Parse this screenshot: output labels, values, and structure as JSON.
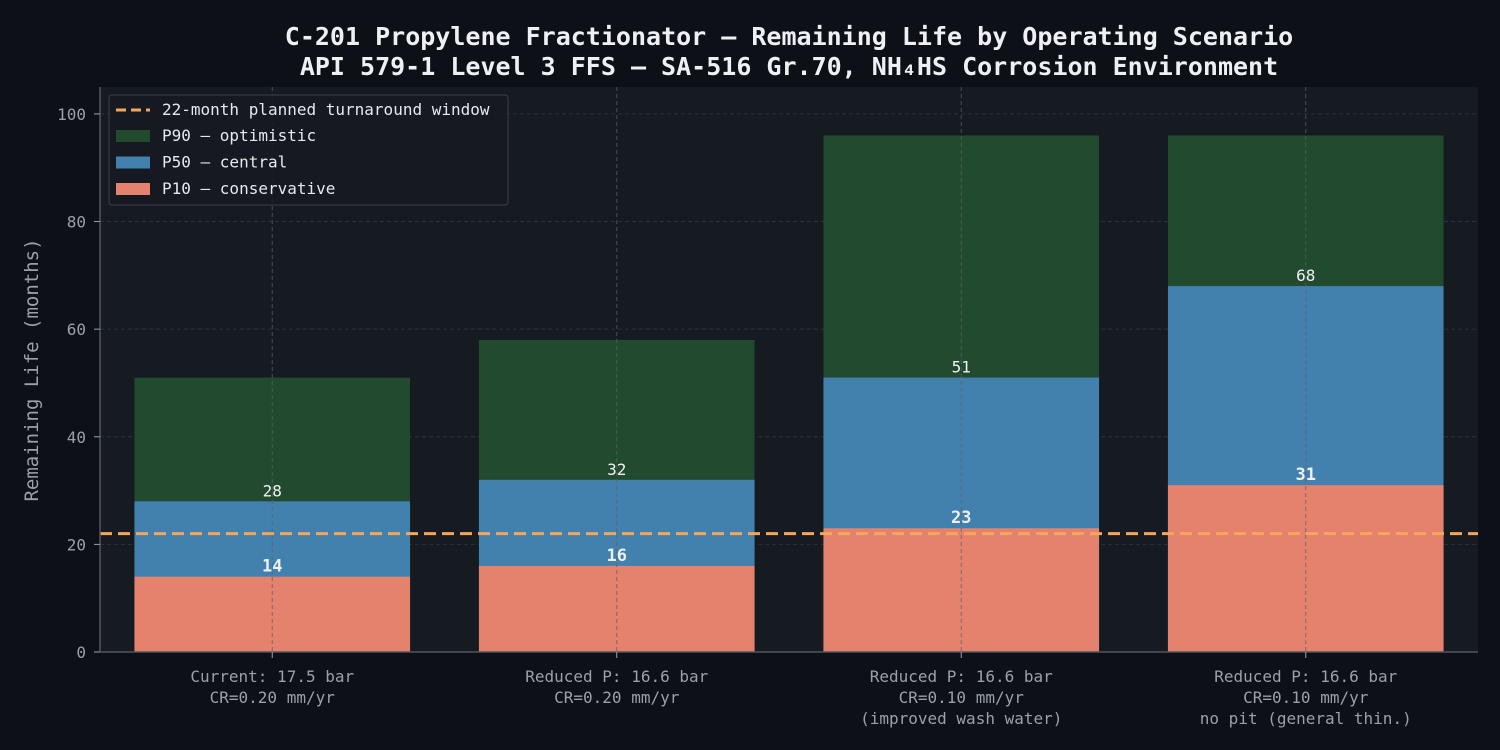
{
  "chart_data": {
    "type": "bar",
    "stacked": false,
    "title": "C-201 Propylene Fractionator – Remaining Life by Operating Scenario",
    "subtitle": "API 579-1 Level 3 FFS – SA-516 Gr.70, NH₄HS Corrosion Environment",
    "xlabel": "",
    "ylabel": "Remaining Life (months)",
    "ylim": [
      0,
      105
    ],
    "yticks": [
      0,
      20,
      40,
      60,
      80,
      100
    ],
    "grid": true,
    "legend_position": "top-left",
    "categories": [
      [
        "Current: 17.5 bar",
        "CR=0.20 mm/yr"
      ],
      [
        "Reduced P: 16.6 bar",
        "CR=0.20 mm/yr"
      ],
      [
        "Reduced P: 16.6 bar",
        "CR=0.10 mm/yr",
        "(improved wash water)"
      ],
      [
        "Reduced P: 16.6 bar",
        "CR=0.10 mm/yr",
        "no pit (general thin.)"
      ]
    ],
    "series": [
      {
        "name": "P90 – optimistic",
        "values": [
          51,
          58,
          96,
          96
        ],
        "color": "#224a2e",
        "show_labels": false
      },
      {
        "name": "P50 – central",
        "values": [
          28,
          32,
          51,
          68
        ],
        "color": "#4281ad",
        "show_labels": true,
        "label_style": "normal"
      },
      {
        "name": "P10 – conservative",
        "values": [
          14,
          16,
          23,
          31
        ],
        "color": "#e5826d",
        "show_labels": true,
        "label_style": "bold"
      }
    ],
    "reference_line": {
      "label": "22-month planned turnaround window",
      "value": 22,
      "color": "#f5a65b"
    }
  },
  "colors": {
    "background": "#0d1017",
    "plot_background": "#161a21",
    "grid": "#2c313a",
    "axis": "#50555e",
    "text": "#eef0f4",
    "muted": "#9aa0aa"
  }
}
